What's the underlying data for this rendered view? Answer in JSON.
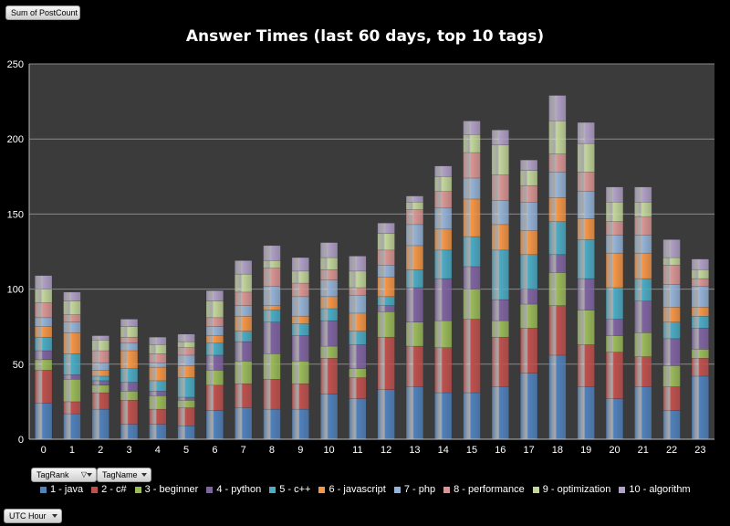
{
  "pivot": {
    "value_field": "Sum of PostCount",
    "filter_fields": [
      "TagRank",
      "TagName"
    ],
    "axis_field": "UTC Hour"
  },
  "chart_data": {
    "type": "bar",
    "stacked": true,
    "title": "Answer Times (last 60 days, top 10 tags)",
    "xlabel": "",
    "ylabel": "",
    "ylim": [
      0,
      250
    ],
    "yticks": [
      0,
      50,
      100,
      150,
      200,
      250
    ],
    "grid": true,
    "legend_position": "bottom",
    "categories": [
      "0",
      "1",
      "2",
      "3",
      "4",
      "5",
      "6",
      "7",
      "8",
      "9",
      "10",
      "11",
      "12",
      "13",
      "14",
      "15",
      "16",
      "17",
      "18",
      "19",
      "20",
      "21",
      "22",
      "23"
    ],
    "series": [
      {
        "name": "1 - java",
        "color": "#4f81bd",
        "values": [
          24,
          17,
          20,
          10,
          10,
          9,
          19,
          21,
          20,
          20,
          30,
          27,
          33,
          35,
          31,
          31,
          35,
          44,
          56,
          35,
          27,
          35,
          19,
          42
        ]
      },
      {
        "name": "2 - c#",
        "color": "#c0504d",
        "values": [
          22,
          8,
          11,
          16,
          10,
          12,
          17,
          16,
          20,
          17,
          24,
          14,
          35,
          27,
          30,
          49,
          33,
          30,
          33,
          28,
          31,
          20,
          16,
          12
        ]
      },
      {
        "name": "3 - beginner",
        "color": "#9bbb59",
        "values": [
          7,
          15,
          5,
          6,
          9,
          5,
          10,
          15,
          17,
          15,
          8,
          6,
          17,
          16,
          18,
          20,
          11,
          16,
          22,
          23,
          11,
          16,
          14,
          6
        ]
      },
      {
        "name": "4 - python",
        "color": "#8064a2",
        "values": [
          6,
          3,
          3,
          6,
          3,
          2,
          10,
          13,
          21,
          17,
          17,
          16,
          4,
          23,
          28,
          15,
          14,
          10,
          12,
          21,
          11,
          21,
          18,
          14
        ]
      },
      {
        "name": "5 - c++",
        "color": "#4bacc6",
        "values": [
          9,
          14,
          3,
          9,
          7,
          13,
          8,
          7,
          8,
          8,
          8,
          9,
          6,
          12,
          19,
          20,
          33,
          23,
          22,
          26,
          21,
          15,
          11,
          8
        ]
      },
      {
        "name": "6 - javascript",
        "color": "#f79646",
        "values": [
          7,
          14,
          4,
          12,
          9,
          8,
          5,
          10,
          3,
          5,
          8,
          12,
          13,
          16,
          14,
          25,
          17,
          16,
          16,
          14,
          23,
          17,
          10,
          6
        ]
      },
      {
        "name": "7 - php",
        "color": "#95b3d7",
        "values": [
          6,
          7,
          5,
          5,
          3,
          7,
          6,
          7,
          13,
          13,
          11,
          12,
          8,
          14,
          14,
          14,
          16,
          19,
          17,
          18,
          12,
          12,
          15,
          14
        ]
      },
      {
        "name": "8 - performance",
        "color": "#da9694",
        "values": [
          10,
          5,
          8,
          4,
          6,
          5,
          6,
          9,
          12,
          9,
          7,
          5,
          10,
          10,
          11,
          17,
          17,
          11,
          12,
          13,
          9,
          12,
          13,
          5
        ]
      },
      {
        "name": "9 - optimization",
        "color": "#c3d69b",
        "values": [
          9,
          9,
          7,
          7,
          6,
          4,
          11,
          12,
          5,
          8,
          8,
          11,
          11,
          5,
          10,
          12,
          20,
          10,
          22,
          19,
          13,
          10,
          5,
          6
        ]
      },
      {
        "name": "10 - algorithm",
        "color": "#b1a0c7",
        "values": [
          9,
          6,
          3,
          5,
          5,
          5,
          7,
          9,
          10,
          9,
          10,
          10,
          7,
          4,
          7,
          9,
          10,
          7,
          17,
          14,
          10,
          10,
          12,
          7
        ]
      }
    ]
  }
}
